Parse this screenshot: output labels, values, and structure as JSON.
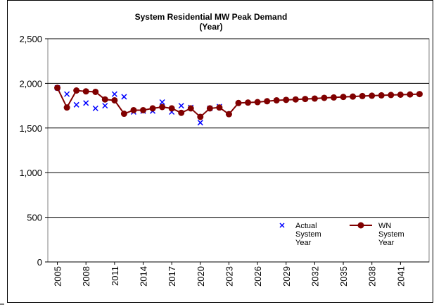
{
  "chart_data": {
    "type": "line",
    "title": "System Residential MW Peak Demand",
    "subtitle": "(Year)",
    "x": [
      2005,
      2006,
      2007,
      2008,
      2009,
      2010,
      2011,
      2012,
      2013,
      2014,
      2015,
      2016,
      2017,
      2018,
      2019,
      2020,
      2021,
      2022,
      2023,
      2024,
      2025,
      2026,
      2027,
      2028,
      2029,
      2030,
      2031,
      2032,
      2033,
      2034,
      2035,
      2036,
      2037,
      2038,
      2039,
      2040,
      2041,
      2042,
      2043
    ],
    "xlim": [
      2004,
      2044
    ],
    "xticks": [
      2005,
      2008,
      2011,
      2014,
      2017,
      2020,
      2023,
      2026,
      2029,
      2032,
      2035,
      2038,
      2041
    ],
    "ylim": [
      0,
      2500
    ],
    "yticks": [
      0,
      500,
      {
        "value": 1000,
        "label": "1,000"
      },
      {
        "value": 1500,
        "label": "1,500"
      },
      {
        "value": 2000,
        "label": "2,000"
      },
      {
        "value": 2500,
        "label": "2,500"
      }
    ],
    "grid": true,
    "series": [
      {
        "name": "Actual System Year",
        "color": "#0000ff",
        "marker": "x",
        "values": [
          1950,
          1880,
          1760,
          1780,
          1720,
          1750,
          1880,
          1850,
          1680,
          1690,
          1690,
          1790,
          1680,
          1750,
          1730,
          1560,
          1720,
          1740,
          null,
          null,
          null,
          null,
          null,
          null,
          null,
          null,
          null,
          null,
          null,
          null,
          null,
          null,
          null,
          null,
          null,
          null,
          null,
          null,
          null
        ]
      },
      {
        "name": "WN System Year",
        "color": "#800000",
        "marker": "circle",
        "values": [
          1950,
          1730,
          1920,
          1910,
          1905,
          1820,
          1810,
          1660,
          1700,
          1700,
          1720,
          1735,
          1720,
          1670,
          1720,
          1625,
          1720,
          1730,
          1655,
          1780,
          1785,
          1790,
          1800,
          1810,
          1815,
          1820,
          1825,
          1830,
          1838,
          1842,
          1848,
          1852,
          1858,
          1862,
          1866,
          1870,
          1873,
          1876,
          1880
        ]
      }
    ]
  }
}
